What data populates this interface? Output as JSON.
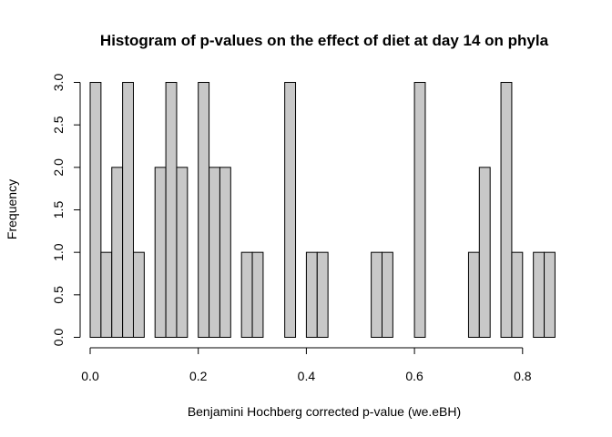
{
  "chart_data": {
    "type": "bar",
    "title": "Histogram of p-values on the effect of diet at day 14 on phyla",
    "xlabel": "Benjamini Hochberg corrected p-value (we.eBH)",
    "ylabel": "Frequency",
    "bin_width": 0.02,
    "bin_start": 0.0,
    "xlim": [
      0.0,
      0.86
    ],
    "ylim": [
      0.0,
      3.0
    ],
    "x_ticks": [
      "0.0",
      "0.2",
      "0.4",
      "0.6",
      "0.8"
    ],
    "x_tick_values": [
      0.0,
      0.2,
      0.4,
      0.6,
      0.8
    ],
    "y_ticks": [
      "0.0",
      "0.5",
      "1.0",
      "1.5",
      "2.0",
      "2.5",
      "3.0"
    ],
    "y_tick_values": [
      0.0,
      0.5,
      1.0,
      1.5,
      2.0,
      2.5,
      3.0
    ],
    "values": [
      3,
      1,
      2,
      3,
      1,
      0,
      2,
      3,
      2,
      0,
      3,
      2,
      2,
      0,
      1,
      1,
      0,
      0,
      3,
      0,
      1,
      1,
      0,
      0,
      0,
      0,
      1,
      1,
      0,
      0,
      3,
      0,
      0,
      0,
      0,
      1,
      2,
      0,
      3,
      1,
      0,
      1,
      1
    ],
    "bar_color": "#c8c8c8",
    "grid": false,
    "legend": "none"
  }
}
